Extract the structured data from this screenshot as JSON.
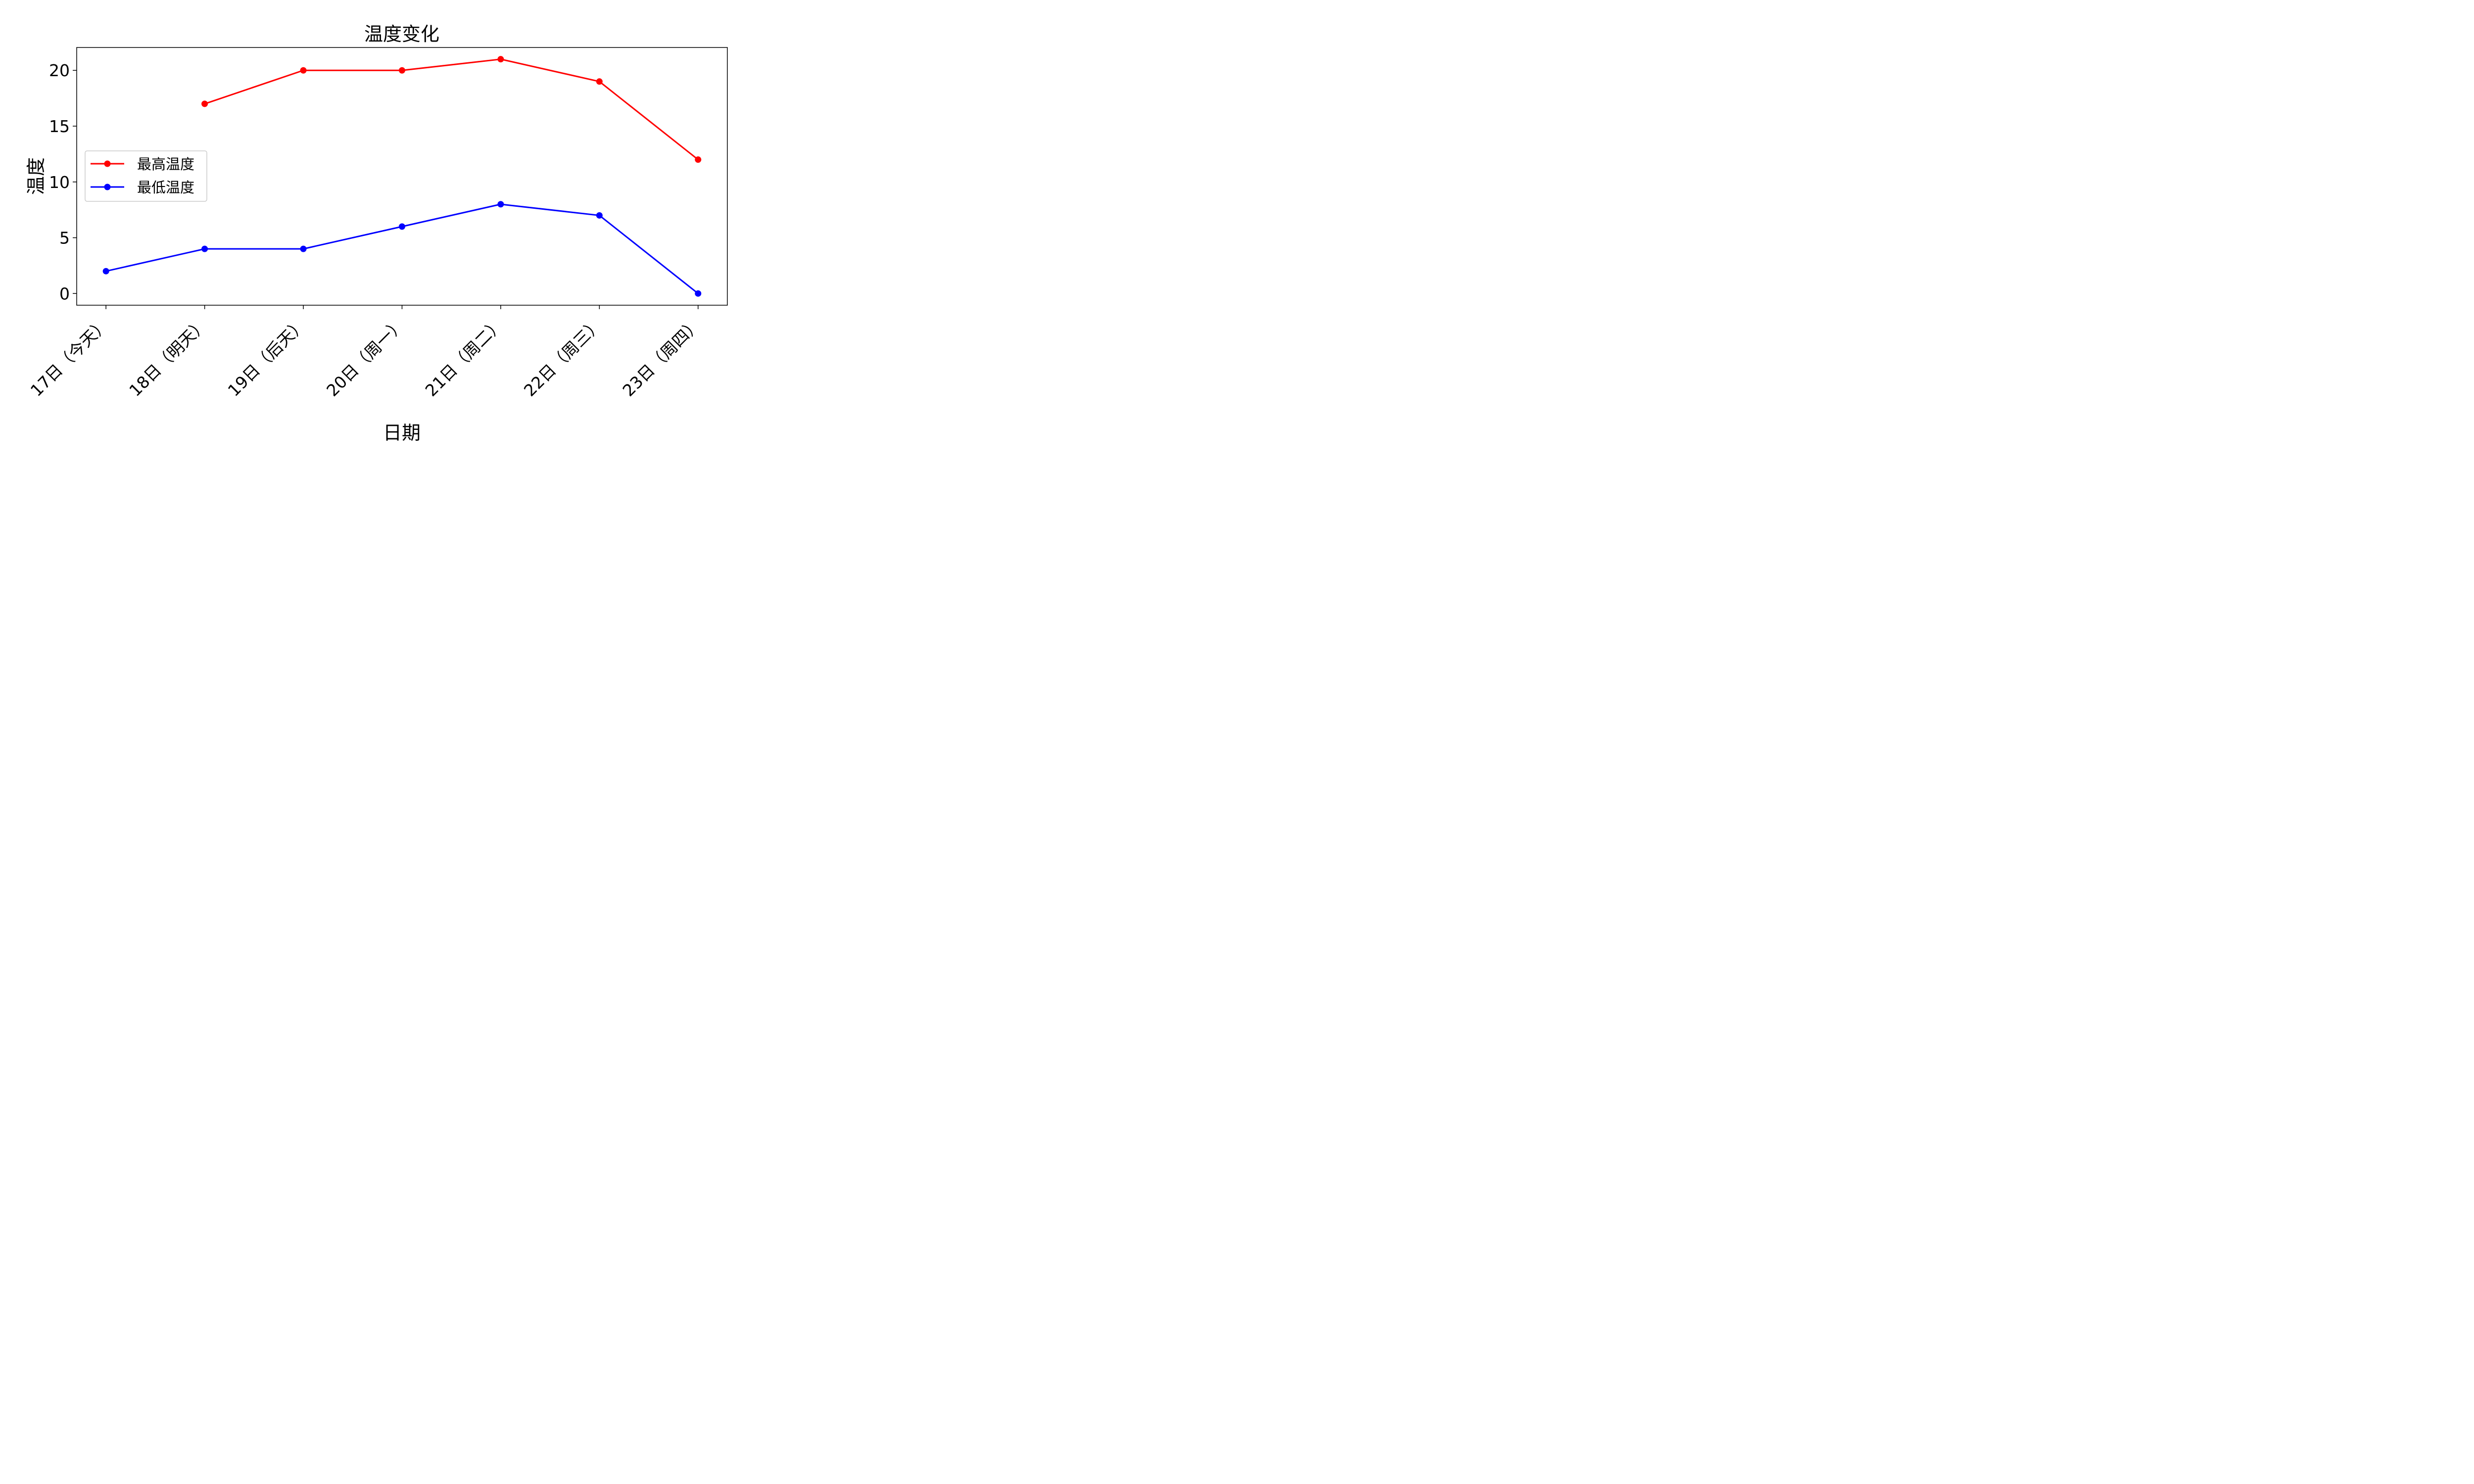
{
  "chart_data": {
    "type": "line",
    "title": "温度变化",
    "xlabel": "日期",
    "ylabel": "温度",
    "categories": [
      "17日（今天）",
      "18日（明天）",
      "19日（后天）",
      "20日（周一）",
      "21日（周二）",
      "22日（周三）",
      "23日（周四）"
    ],
    "series": [
      {
        "name": "最高温度",
        "color": "#ff0000",
        "values": [
          null,
          17,
          20,
          20,
          21,
          19,
          12
        ]
      },
      {
        "name": "最低温度",
        "color": "#0000ff",
        "values": [
          2,
          4,
          4,
          6,
          8,
          7,
          0
        ]
      }
    ],
    "yticks": [
      0,
      5,
      10,
      15,
      20
    ],
    "ylim": [
      -1.05,
      22.05
    ],
    "grid": false,
    "legend_position": "center-left"
  }
}
